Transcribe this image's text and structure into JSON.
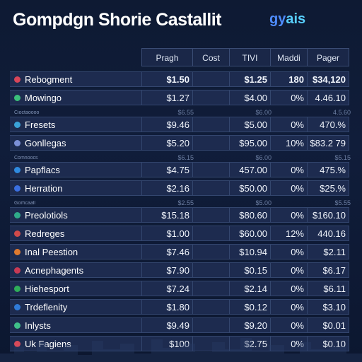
{
  "header": {
    "title": "Gompdgn Shorie Castallit",
    "logo_part1": "gy",
    "logo_part2": "ais"
  },
  "table": {
    "columns": [
      "Pragh",
      "Cost",
      "TIVI",
      "Maddi",
      "Pager"
    ],
    "rows": [
      {
        "label": "Rebogment",
        "values": [
          "$1.50",
          "",
          "$1.25",
          "180",
          "$34,120"
        ],
        "flag": "#d8465a",
        "bold": true
      },
      {
        "label": "Mowingo",
        "values": [
          "$1.27",
          "",
          "$4.00",
          "0%",
          "4.46.10"
        ],
        "flag": "#3bbf7a"
      },
      {
        "sublabel": "Cioctaoooo",
        "subvalues": [
          "$6.55",
          "",
          "$6.00",
          "",
          "4.5.60"
        ]
      },
      {
        "label": "Fresets",
        "values": [
          "$9.46",
          "",
          "$5.00",
          "0%",
          "470.%"
        ],
        "flag": "#3aa2d8"
      },
      {
        "label": "Gonllegas",
        "values": [
          "$5.20",
          "",
          "$95.00",
          "10%",
          "$83.2 79"
        ],
        "flag": "#7b8fd6"
      },
      {
        "sublabel": "Comnoocs",
        "subvalues": [
          "$6.15",
          "",
          "$6.00",
          "",
          "$5.15"
        ]
      },
      {
        "label": "Papflacs",
        "values": [
          "$4.75",
          "",
          "457.00",
          "0%",
          "475.%"
        ],
        "flag": "#2f8be0"
      },
      {
        "label": "Herration",
        "values": [
          "$2.16",
          "",
          "$50.00",
          "0%",
          "$25.%"
        ],
        "flag": "#3a6fe0"
      },
      {
        "sublabel": "Gorhcaall",
        "subvalues": [
          "$2.55",
          "",
          "$5.00",
          "",
          "$5.55"
        ]
      },
      {
        "label": "Preolotiols",
        "values": [
          "$15.18",
          "",
          "$80.60",
          "0%",
          "$160.10"
        ],
        "flag": "#2faa8a"
      },
      {
        "label": "Redreges",
        "values": [
          "$1.00",
          "",
          "$60.00",
          "12%",
          "440.16"
        ],
        "flag": "#d04a4a"
      },
      {
        "label": "Inal Peestion",
        "values": [
          "$7.46",
          "",
          "$10.94",
          "0%",
          "$2.11"
        ],
        "flag": "#e07a2f"
      },
      {
        "label": "Acnephagents",
        "values": [
          "$7.90",
          "",
          "$0.15",
          "0%",
          "$6.17"
        ],
        "flag": "#c83a55"
      },
      {
        "label": "Hiehesport",
        "values": [
          "$7.24",
          "",
          "$2.14",
          "0%",
          "$6.11"
        ],
        "flag": "#2fae5a"
      },
      {
        "label": "Trdeflenity",
        "values": [
          "$1.80",
          "",
          "$0.12",
          "0%",
          "$3.10"
        ],
        "flag": "#2f7ad8"
      },
      {
        "label": "Inlysts",
        "values": [
          "$9.49",
          "",
          "$9.20",
          "0%",
          "$0.01"
        ],
        "flag": "#3fbf8a"
      },
      {
        "label": "Uk Fagiens",
        "values": [
          "$100",
          "",
          "$2.75",
          "0%",
          "$0.10"
        ],
        "flag": "#d84a5a"
      }
    ]
  }
}
